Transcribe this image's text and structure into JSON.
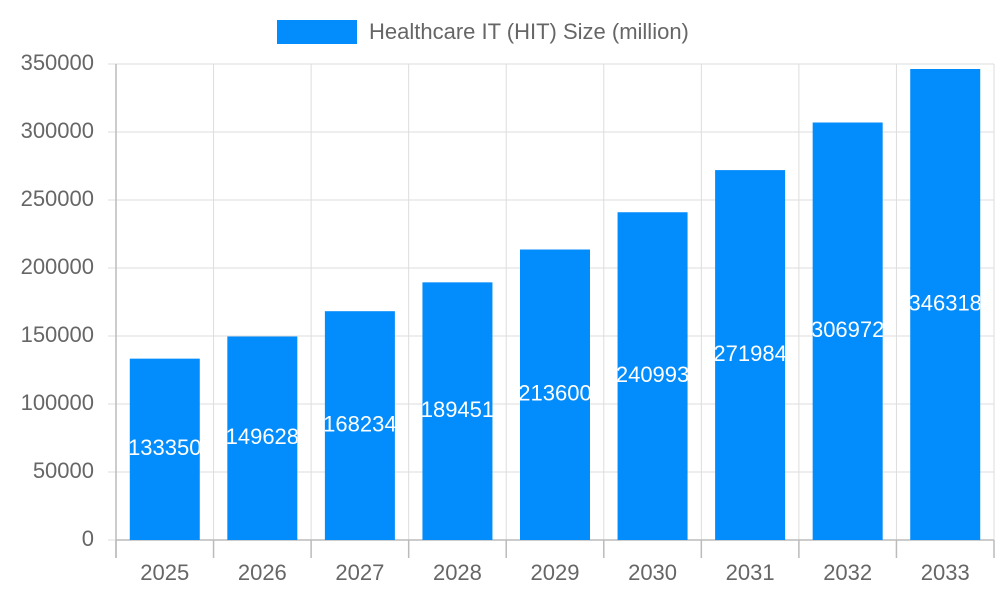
{
  "chart_data": {
    "type": "bar",
    "categories": [
      "2025",
      "2026",
      "2027",
      "2028",
      "2029",
      "2030",
      "2031",
      "2032",
      "2033"
    ],
    "series": [
      {
        "name": "Healthcare IT (HIT) Size (million)",
        "color": "#038cfc",
        "values": [
          133350,
          149628,
          168234,
          189451,
          213600,
          240993,
          271984,
          306972,
          346318
        ]
      }
    ],
    "ylim": [
      0,
      350000
    ],
    "yticks": [
      0,
      50000,
      100000,
      150000,
      200000,
      250000,
      300000,
      350000
    ],
    "grid": true,
    "legend": "top"
  }
}
